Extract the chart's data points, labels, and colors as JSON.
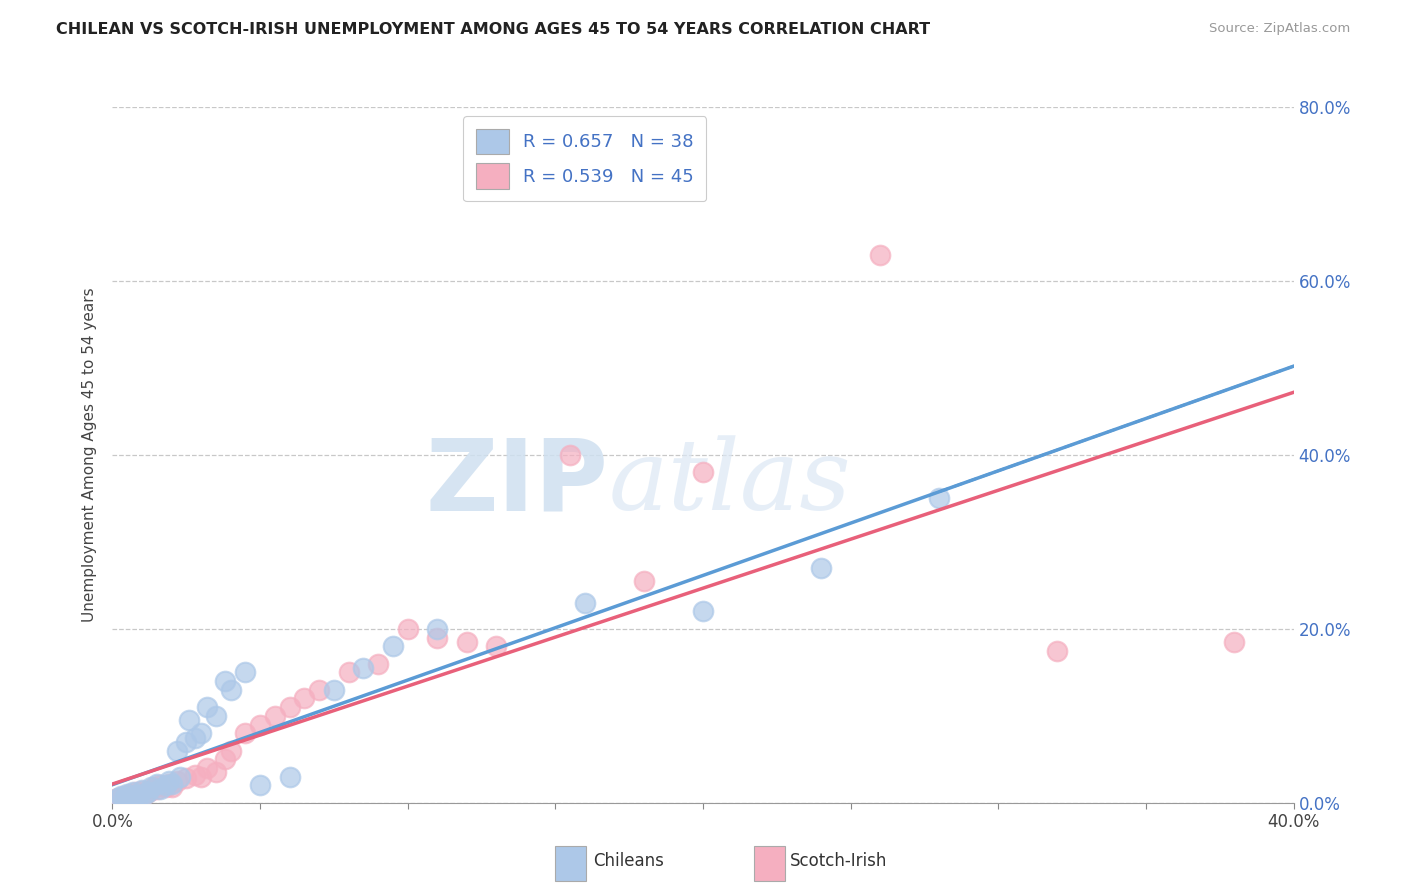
{
  "title": "CHILEAN VS SCOTCH-IRISH UNEMPLOYMENT AMONG AGES 45 TO 54 YEARS CORRELATION CHART",
  "source": "Source: ZipAtlas.com",
  "ylabel": "Unemployment Among Ages 45 to 54 years",
  "xlim": [
    0.0,
    0.4
  ],
  "ylim": [
    0.0,
    0.8
  ],
  "x_ticks": [
    0.0,
    0.05,
    0.1,
    0.15,
    0.2,
    0.25,
    0.3,
    0.35,
    0.4
  ],
  "y_ticks": [
    0.0,
    0.2,
    0.4,
    0.6,
    0.8
  ],
  "y_tick_labels_right": [
    "0.0%",
    "20.0%",
    "40.0%",
    "60.0%",
    "80.0%"
  ],
  "chilean_R": 0.657,
  "chilean_N": 38,
  "scotch_irish_R": 0.539,
  "scotch_irish_N": 45,
  "chilean_color": "#adc8e8",
  "scotch_irish_color": "#f5afc0",
  "chilean_line_color": "#5b9bd5",
  "scotch_irish_line_color": "#e8607a",
  "background_color": "#ffffff",
  "grid_color": "#c8c8c8",
  "watermark_color": "#cfe0f0",
  "chilean_x": [
    0.002,
    0.003,
    0.004,
    0.005,
    0.006,
    0.007,
    0.008,
    0.009,
    0.01,
    0.011,
    0.012,
    0.013,
    0.015,
    0.016,
    0.018,
    0.019,
    0.02,
    0.022,
    0.023,
    0.025,
    0.026,
    0.028,
    0.03,
    0.032,
    0.035,
    0.038,
    0.04,
    0.045,
    0.05,
    0.06,
    0.075,
    0.085,
    0.095,
    0.11,
    0.16,
    0.2,
    0.24,
    0.28
  ],
  "chilean_y": [
    0.005,
    0.008,
    0.006,
    0.01,
    0.007,
    0.012,
    0.009,
    0.008,
    0.015,
    0.01,
    0.012,
    0.018,
    0.022,
    0.016,
    0.02,
    0.025,
    0.022,
    0.06,
    0.03,
    0.07,
    0.095,
    0.075,
    0.08,
    0.11,
    0.1,
    0.14,
    0.13,
    0.15,
    0.02,
    0.03,
    0.13,
    0.155,
    0.18,
    0.2,
    0.23,
    0.22,
    0.27,
    0.35
  ],
  "scotch_x": [
    0.001,
    0.002,
    0.003,
    0.004,
    0.005,
    0.006,
    0.007,
    0.008,
    0.009,
    0.01,
    0.011,
    0.012,
    0.013,
    0.014,
    0.015,
    0.016,
    0.018,
    0.019,
    0.02,
    0.022,
    0.025,
    0.028,
    0.03,
    0.032,
    0.035,
    0.038,
    0.04,
    0.045,
    0.05,
    0.055,
    0.06,
    0.065,
    0.07,
    0.08,
    0.09,
    0.1,
    0.11,
    0.12,
    0.13,
    0.155,
    0.18,
    0.2,
    0.26,
    0.32,
    0.38
  ],
  "scotch_y": [
    0.004,
    0.006,
    0.005,
    0.008,
    0.007,
    0.01,
    0.008,
    0.012,
    0.01,
    0.013,
    0.01,
    0.012,
    0.015,
    0.018,
    0.016,
    0.02,
    0.018,
    0.022,
    0.018,
    0.025,
    0.028,
    0.032,
    0.03,
    0.04,
    0.035,
    0.05,
    0.06,
    0.08,
    0.09,
    0.1,
    0.11,
    0.12,
    0.13,
    0.15,
    0.16,
    0.2,
    0.19,
    0.185,
    0.18,
    0.4,
    0.255,
    0.38,
    0.63,
    0.175,
    0.185
  ]
}
